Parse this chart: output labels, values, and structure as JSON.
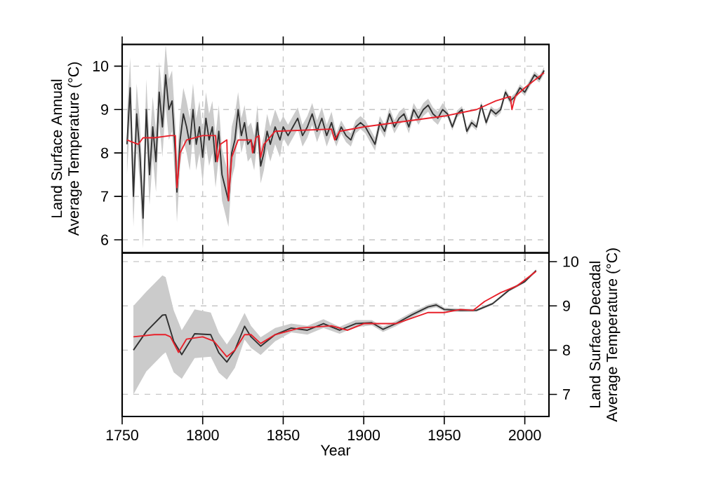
{
  "chart_data": [
    {
      "type": "line",
      "ylabel": "Land Surface Annual Average Temperature (°C)",
      "xlim": [
        1750,
        2015
      ],
      "ylim": [
        5.7,
        10.5
      ],
      "xticks": [
        1750,
        1800,
        1850,
        1900,
        1950,
        2000
      ],
      "yticks": [
        6,
        7,
        8,
        9,
        10
      ],
      "grid": true,
      "tick_labels": "y",
      "marker": "none",
      "line_style": "solid",
      "series": [
        {
          "color": "#303030",
          "x": [
            1753,
            1755,
            1757,
            1759,
            1761,
            1763,
            1765,
            1767,
            1769,
            1771,
            1773,
            1775,
            1777,
            1779,
            1781,
            1783,
            1784,
            1786,
            1788,
            1790,
            1792,
            1794,
            1796,
            1798,
            1800,
            1802,
            1804,
            1806,
            1808,
            1810,
            1812,
            1814,
            1816,
            1818,
            1820,
            1822,
            1824,
            1826,
            1828,
            1830,
            1832,
            1834,
            1836,
            1838,
            1840,
            1842,
            1845,
            1848,
            1850,
            1853,
            1856,
            1859,
            1862,
            1865,
            1868,
            1871,
            1874,
            1877,
            1880,
            1883,
            1886,
            1889,
            1892,
            1895,
            1898,
            1901,
            1904,
            1907,
            1910,
            1913,
            1916,
            1919,
            1922,
            1925,
            1928,
            1931,
            1934,
            1937,
            1940,
            1943,
            1946,
            1949,
            1952,
            1955,
            1958,
            1961,
            1964,
            1967,
            1970,
            1973,
            1976,
            1979,
            1982,
            1985,
            1988,
            1991,
            1994,
            1997,
            2000,
            2003,
            2006,
            2009,
            2012
          ],
          "values": [
            8.2,
            9.5,
            7.0,
            8.9,
            8.0,
            6.5,
            9.0,
            7.5,
            8.6,
            7.8,
            9.4,
            8.6,
            9.8,
            9.0,
            9.2,
            8.0,
            7.1,
            8.3,
            8.9,
            8.6,
            8.2,
            9.0,
            8.2,
            8.6,
            7.9,
            8.8,
            8.3,
            8.6,
            7.8,
            8.5,
            7.5,
            7.2,
            6.9,
            8.0,
            8.3,
            9.0,
            8.4,
            8.7,
            8.2,
            8.3,
            8.0,
            8.7,
            7.7,
            8.0,
            8.5,
            8.2,
            8.6,
            8.3,
            8.6,
            8.4,
            8.6,
            8.8,
            8.4,
            8.6,
            8.9,
            8.5,
            8.8,
            8.4,
            8.7,
            8.3,
            8.6,
            8.4,
            8.3,
            8.6,
            8.7,
            8.6,
            8.4,
            8.2,
            8.7,
            8.5,
            8.9,
            8.6,
            8.8,
            8.9,
            8.6,
            9.0,
            8.8,
            9.0,
            9.1,
            8.9,
            8.8,
            9.0,
            8.9,
            8.6,
            8.9,
            9.0,
            8.5,
            8.7,
            8.6,
            9.1,
            8.7,
            9.0,
            8.9,
            9.0,
            9.4,
            9.2,
            9.3,
            9.5,
            9.4,
            9.6,
            9.8,
            9.7,
            9.9
          ],
          "lower": [
            7.5,
            8.8,
            6.3,
            8.2,
            7.3,
            5.8,
            8.3,
            6.8,
            7.9,
            7.1,
            8.7,
            7.9,
            9.1,
            8.3,
            8.5,
            7.3,
            6.4,
            7.7,
            8.3,
            8.0,
            7.6,
            8.4,
            7.6,
            8.0,
            7.3,
            8.2,
            7.7,
            8.0,
            7.2,
            7.9,
            6.9,
            6.6,
            6.3,
            7.4,
            7.7,
            8.6,
            8.0,
            8.3,
            7.8,
            7.9,
            7.6,
            8.3,
            7.3,
            7.6,
            8.1,
            7.8,
            8.2,
            7.9,
            8.35,
            8.15,
            8.35,
            8.55,
            8.15,
            8.35,
            8.65,
            8.25,
            8.55,
            8.15,
            8.45,
            8.15,
            8.45,
            8.25,
            8.15,
            8.45,
            8.55,
            8.45,
            8.25,
            8.05,
            8.55,
            8.35,
            8.75,
            8.45,
            8.65,
            8.75,
            8.45,
            8.85,
            8.65,
            8.85,
            8.95,
            8.75,
            8.65,
            8.85,
            8.82,
            8.52,
            8.82,
            8.92,
            8.42,
            8.62,
            8.52,
            9.02,
            8.62,
            8.92,
            8.82,
            8.92,
            9.32,
            9.12,
            9.22,
            9.42,
            9.32,
            9.52,
            9.72,
            9.62,
            9.82
          ],
          "upper": [
            8.9,
            10.2,
            7.7,
            9.6,
            8.7,
            7.2,
            9.7,
            8.2,
            9.3,
            8.5,
            10.1,
            9.3,
            10.5,
            9.7,
            9.9,
            8.7,
            7.8,
            8.9,
            9.5,
            9.2,
            8.8,
            9.6,
            8.8,
            9.2,
            8.5,
            9.4,
            8.9,
            9.2,
            8.4,
            9.1,
            8.1,
            7.8,
            7.5,
            8.6,
            8.9,
            9.4,
            8.8,
            9.1,
            8.6,
            8.7,
            8.4,
            9.1,
            8.1,
            8.4,
            8.9,
            8.6,
            9.0,
            8.7,
            8.85,
            8.65,
            8.85,
            9.05,
            8.65,
            8.85,
            9.15,
            8.75,
            9.05,
            8.65,
            8.95,
            8.45,
            8.75,
            8.55,
            8.45,
            8.75,
            8.85,
            8.75,
            8.55,
            8.35,
            8.85,
            8.65,
            9.05,
            8.75,
            8.95,
            9.05,
            8.75,
            9.15,
            8.95,
            9.15,
            9.25,
            9.05,
            8.95,
            9.15,
            8.98,
            8.68,
            8.98,
            9.08,
            8.58,
            8.78,
            8.68,
            9.18,
            8.78,
            9.08,
            8.98,
            9.08,
            9.48,
            9.28,
            9.38,
            9.58,
            9.48,
            9.68,
            9.88,
            9.78,
            9.98
          ]
        },
        {
          "color": "#e8202a",
          "x": [
            1753,
            1760,
            1763,
            1770,
            1780,
            1783,
            1784,
            1786,
            1790,
            1800,
            1808,
            1809,
            1811,
            1815,
            1816,
            1818,
            1822,
            1830,
            1831,
            1833,
            1835,
            1836,
            1838,
            1845,
            1880,
            1882,
            1885,
            1900,
            1950,
            1970,
            1982,
            1991,
            1992,
            1994,
            2000,
            2012
          ],
          "values": [
            8.3,
            8.2,
            8.35,
            8.35,
            8.4,
            8.4,
            7.2,
            8.0,
            8.3,
            8.4,
            8.4,
            7.8,
            8.2,
            8.3,
            6.9,
            7.9,
            8.3,
            8.3,
            8.0,
            8.35,
            8.4,
            7.9,
            8.2,
            8.5,
            8.55,
            8.3,
            8.5,
            8.6,
            8.85,
            9.0,
            9.2,
            9.3,
            9.0,
            9.3,
            9.5,
            9.85
          ]
        }
      ]
    },
    {
      "type": "line",
      "y2label": "Land Surface Decadal Average Temperature (°C)",
      "xlabel": "Year",
      "xlim": [
        1750,
        2015
      ],
      "y2lim": [
        6.5,
        10.2
      ],
      "xticks": [
        1750,
        1800,
        1850,
        1900,
        1950,
        2000
      ],
      "y2ticks": [
        7,
        8,
        9,
        10
      ],
      "grid": true,
      "marker": "none",
      "line_style": "solid",
      "series": [
        {
          "color": "#303030",
          "axis": "y2",
          "x": [
            1757,
            1765,
            1775,
            1777,
            1782,
            1787,
            1795,
            1805,
            1810,
            1815,
            1820,
            1826,
            1830,
            1836,
            1845,
            1855,
            1865,
            1875,
            1885,
            1895,
            1905,
            1912,
            1920,
            1930,
            1940,
            1945,
            1950,
            1960,
            1970,
            1980,
            1990,
            2000,
            2007
          ],
          "values": [
            8.0,
            8.42,
            8.79,
            8.8,
            8.2,
            7.9,
            8.37,
            8.35,
            7.94,
            7.73,
            8.0,
            8.54,
            8.3,
            8.09,
            8.35,
            8.5,
            8.45,
            8.6,
            8.45,
            8.6,
            8.62,
            8.47,
            8.6,
            8.8,
            8.98,
            9.02,
            8.92,
            8.9,
            8.9,
            9.05,
            9.35,
            9.55,
            9.8
          ],
          "lower": [
            7.0,
            7.52,
            7.89,
            7.95,
            7.5,
            7.35,
            7.82,
            7.85,
            7.49,
            7.33,
            7.6,
            8.24,
            8.05,
            7.89,
            8.2,
            8.4,
            8.35,
            8.5,
            8.37,
            8.52,
            8.56,
            8.41,
            8.54,
            8.74,
            8.93,
            8.97,
            8.88,
            8.86,
            8.87,
            9.02,
            9.32,
            9.52,
            9.77
          ],
          "upper": [
            9.0,
            9.32,
            9.69,
            9.65,
            8.9,
            8.45,
            8.92,
            8.85,
            8.39,
            8.13,
            8.4,
            8.84,
            8.55,
            8.29,
            8.5,
            8.6,
            8.55,
            8.7,
            8.53,
            8.68,
            8.68,
            8.53,
            8.66,
            8.86,
            9.03,
            9.07,
            8.96,
            8.94,
            8.93,
            9.08,
            9.38,
            9.58,
            9.83
          ]
        },
        {
          "color": "#e8202a",
          "axis": "y2",
          "x": [
            1757,
            1770,
            1777,
            1780,
            1785,
            1790,
            1800,
            1807,
            1815,
            1820,
            1826,
            1830,
            1836,
            1845,
            1860,
            1880,
            1890,
            1900,
            1920,
            1940,
            1950,
            1960,
            1968,
            1975,
            1985,
            1995,
            2007
          ],
          "values": [
            8.3,
            8.35,
            8.35,
            8.3,
            7.95,
            8.25,
            8.3,
            8.2,
            7.85,
            8.0,
            8.35,
            8.35,
            8.15,
            8.35,
            8.5,
            8.55,
            8.45,
            8.6,
            8.6,
            8.85,
            8.85,
            8.92,
            8.9,
            9.1,
            9.3,
            9.45,
            9.78
          ]
        }
      ]
    }
  ]
}
